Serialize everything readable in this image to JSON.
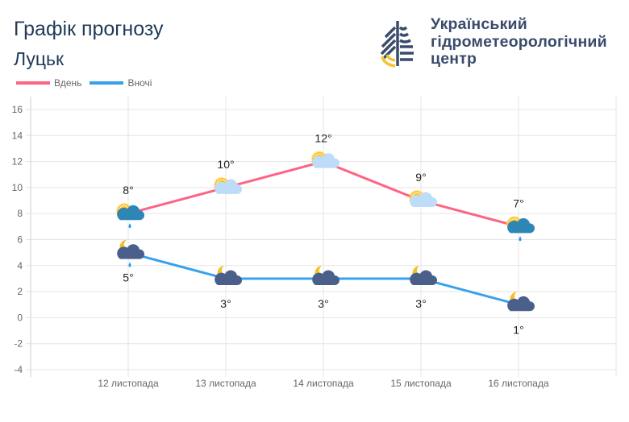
{
  "header": {
    "title": "Графік прогнозу",
    "city": "Луцьк"
  },
  "logo": {
    "lines": [
      "Український",
      "гідрометеорологічний",
      "центр"
    ]
  },
  "colors": {
    "day": "#ff6384",
    "night": "#36a2eb",
    "title": "#1f3b57"
  },
  "chart_data": {
    "type": "line",
    "categories": [
      "12 листопада",
      "13 листопада",
      "14 листопада",
      "15 листопада",
      "16 листопада"
    ],
    "ylim": [
      -4,
      16
    ],
    "yticks": [
      16,
      14,
      12,
      10,
      8,
      6,
      4,
      2,
      0,
      -2,
      -4
    ],
    "grid": true,
    "legend": "top-left",
    "series": [
      {
        "name": "Вдень",
        "values": [
          8,
          10,
          12,
          9,
          7
        ],
        "labels": [
          "8°",
          "10°",
          "12°",
          "9°",
          "7°"
        ],
        "icons": [
          "sun-cloud-rain-icon",
          "sun-cloud-icon",
          "sun-cloud-icon",
          "sun-cloud-icon",
          "sun-cloud-rain-icon"
        ]
      },
      {
        "name": "Вночі",
        "values": [
          5,
          3,
          3,
          3,
          1
        ],
        "labels": [
          "5°",
          "3°",
          "3°",
          "3°",
          "1°"
        ],
        "icons": [
          "moon-cloud-rain-icon",
          "moon-cloud-icon",
          "moon-cloud-icon",
          "moon-cloud-icon",
          "moon-cloud-icon"
        ]
      }
    ]
  }
}
